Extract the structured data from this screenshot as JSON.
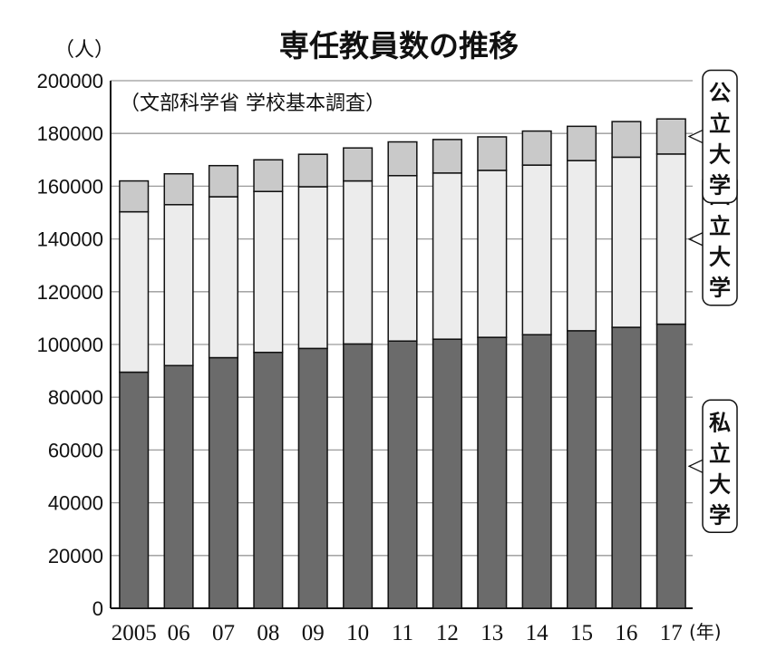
{
  "title": "専任教員数の推移",
  "source_note": "（文部科学省 学校基本調査）",
  "chart_data": {
    "type": "bar",
    "stacked": true,
    "y_unit_label": "（人）",
    "x_unit_label": "(年)",
    "categories": [
      "2005",
      "06",
      "07",
      "08",
      "09",
      "10",
      "11",
      "12",
      "13",
      "14",
      "15",
      "16",
      "17"
    ],
    "series": [
      {
        "name": "私立大学",
        "color": "#6b6b6b",
        "values": [
          89500,
          92000,
          95000,
          97000,
          98500,
          100200,
          101300,
          102000,
          102700,
          103700,
          105200,
          106500,
          107700
        ]
      },
      {
        "name": "国立大学",
        "color": "#ececec",
        "values": [
          60800,
          61000,
          61000,
          61000,
          61300,
          61800,
          62700,
          63000,
          63300,
          64300,
          64500,
          64500,
          64500
        ]
      },
      {
        "name": "公立大学",
        "color": "#c9c9c9",
        "values": [
          11700,
          11700,
          11800,
          12000,
          12300,
          12500,
          12800,
          12700,
          12700,
          12900,
          13000,
          13500,
          13300
        ]
      }
    ],
    "yticks": [
      "0",
      "20000",
      "40000",
      "60000",
      "80000",
      "100000",
      "120000",
      "140000",
      "160000",
      "180000",
      "200000"
    ],
    "ylim": [
      0,
      200000
    ],
    "grid": true,
    "legend_placement": "right, labels beside top bar"
  }
}
